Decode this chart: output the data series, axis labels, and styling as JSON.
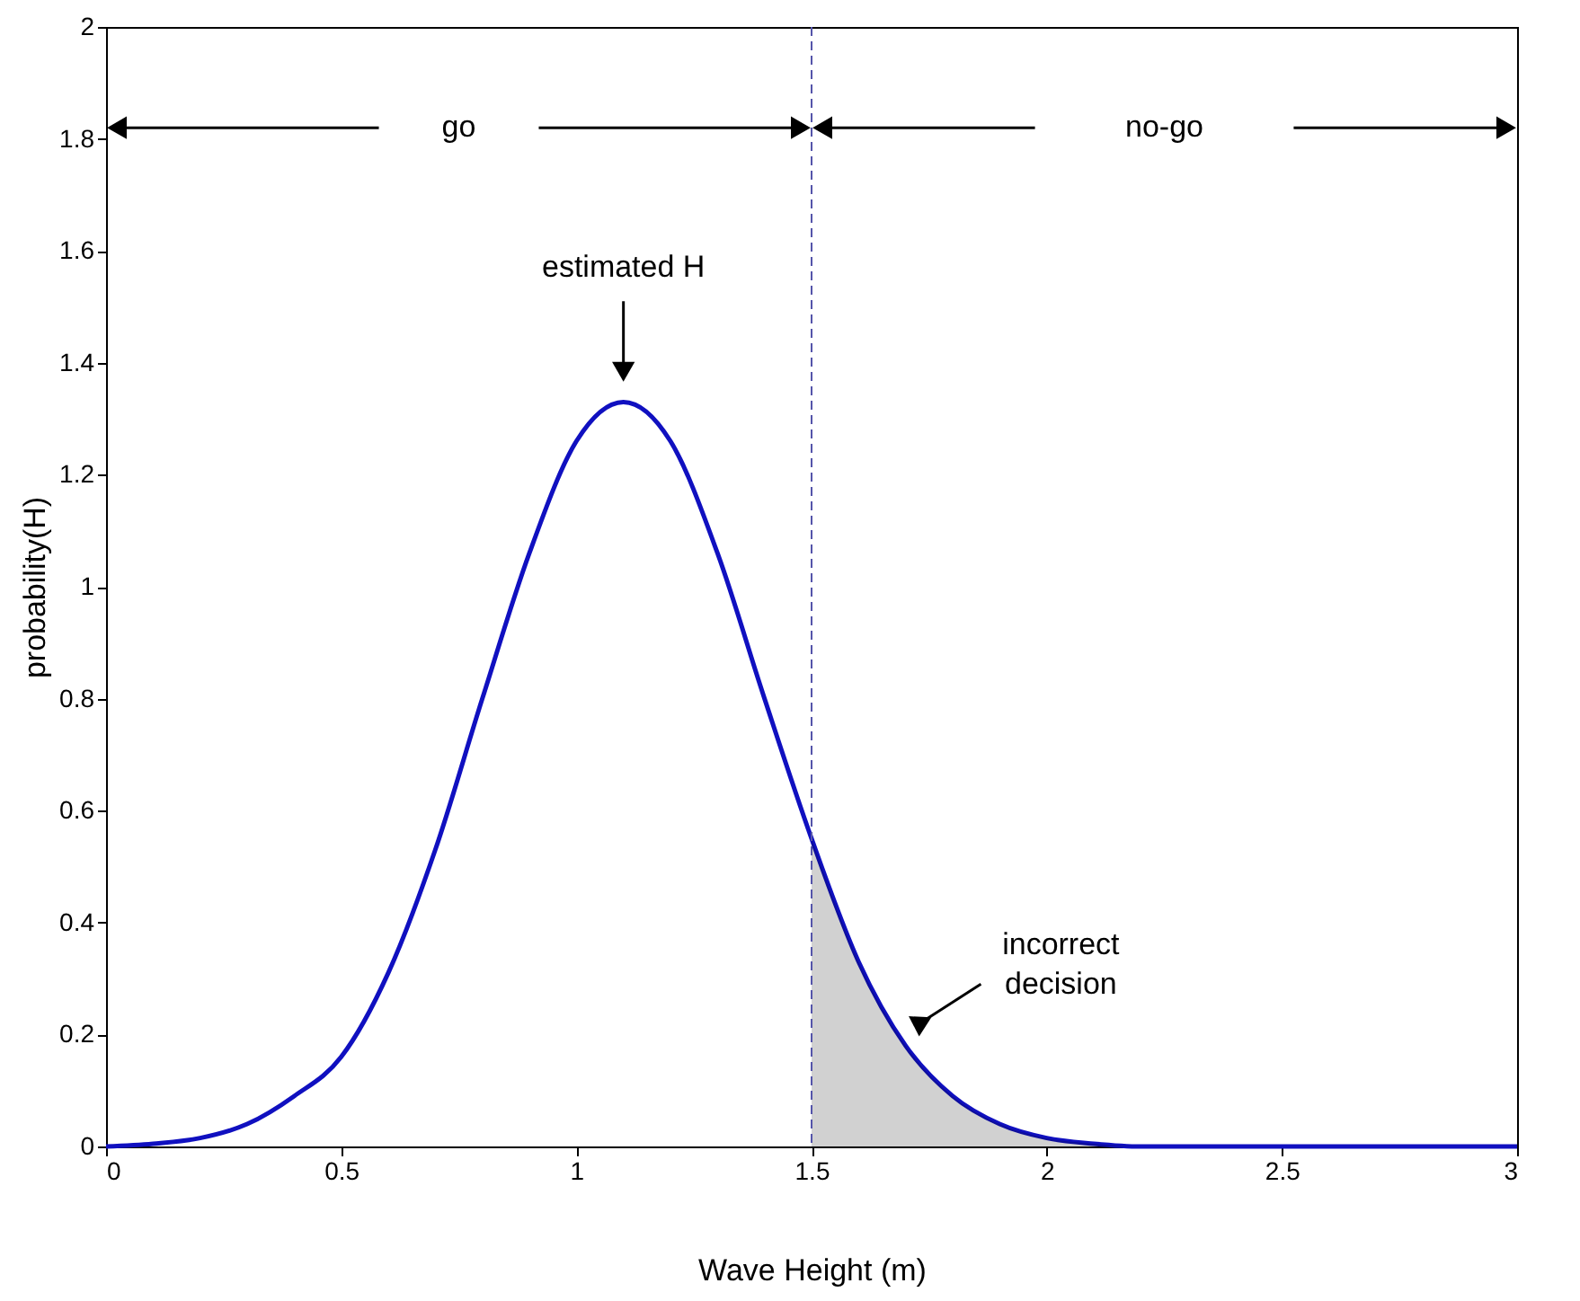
{
  "chart_data": {
    "type": "line",
    "xlabel": "Wave Height (m)",
    "ylabel": "probability(H)",
    "xlim": [
      0,
      3
    ],
    "xticks": [
      0,
      0.5,
      1,
      1.5,
      2,
      2.5,
      3
    ],
    "ylim": [
      0,
      2
    ],
    "yticks": [
      0,
      0.2,
      0.4,
      0.6,
      0.8,
      1,
      1.2,
      1.4,
      1.6,
      1.8,
      2
    ],
    "series": [
      {
        "color": "#1010c0",
        "x": [
          0,
          0.1,
          0.2,
          0.3,
          0.4,
          0.5,
          0.6,
          0.7,
          0.8,
          0.9,
          1.0,
          1.1,
          1.2,
          1.3,
          1.4,
          1.5,
          1.6,
          1.7,
          1.8,
          1.9,
          2.0,
          2.1,
          2.2,
          2.5,
          3
        ],
        "values": [
          0,
          0.005,
          0.015,
          0.04,
          0.09,
          0.16,
          0.31,
          0.53,
          0.8,
          1.06,
          1.26,
          1.33,
          1.26,
          1.06,
          0.8,
          0.55,
          0.33,
          0.18,
          0.09,
          0.04,
          0.015,
          0.005,
          0,
          0,
          0
        ]
      },
      {
        "type": "area",
        "color": "#000000",
        "x": [
          1.5,
          1.6,
          1.7,
          1.8,
          1.9,
          2.0,
          2.1,
          2.2
        ],
        "values": [
          0.55,
          0.33,
          0.18,
          0.09,
          0.04,
          0.015,
          0.005,
          0
        ]
      }
    ],
    "ref_lines": [
      {
        "axis": "x",
        "value": 1.5,
        "color": "#5555aa",
        "line_style": "dashed"
      }
    ],
    "annotations": [
      "go",
      "no-go",
      "estimated H",
      "incorrect decision"
    ]
  }
}
